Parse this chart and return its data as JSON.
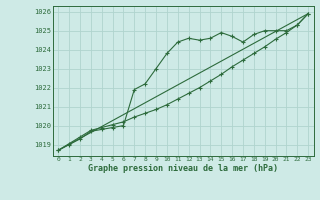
{
  "title": "Graphe pression niveau de la mer (hPa)",
  "background_color": "#ceeae6",
  "grid_color": "#b0d4ce",
  "line_color": "#2d6b3c",
  "x_ticks": [
    0,
    1,
    2,
    3,
    4,
    5,
    6,
    7,
    8,
    9,
    10,
    11,
    12,
    13,
    14,
    15,
    16,
    17,
    18,
    19,
    20,
    21,
    22,
    23
  ],
  "xlim": [
    -0.5,
    23.5
  ],
  "ylim": [
    1018.4,
    1026.3
  ],
  "y_ticks": [
    1019,
    1020,
    1021,
    1022,
    1023,
    1024,
    1025,
    1026
  ],
  "series1_x": [
    0,
    1,
    2,
    3,
    4,
    5,
    6,
    7,
    8,
    9,
    10,
    11,
    12,
    13,
    14,
    15,
    16,
    17,
    18,
    19,
    20,
    21,
    22,
    23
  ],
  "series1_y": [
    1018.7,
    1019.0,
    1019.3,
    1019.7,
    1019.8,
    1019.9,
    1020.0,
    1021.9,
    1022.2,
    1023.0,
    1023.8,
    1024.4,
    1024.6,
    1024.5,
    1024.6,
    1024.9,
    1024.7,
    1024.4,
    1024.8,
    1025.0,
    1025.0,
    1025.0,
    1025.3,
    1025.9
  ],
  "series2_x": [
    0,
    1,
    2,
    3,
    4,
    5,
    6,
    7,
    8,
    9,
    10,
    11,
    12,
    13,
    14,
    15,
    16,
    17,
    18,
    19,
    20,
    21,
    22,
    23
  ],
  "series2_y": [
    1018.7,
    1019.05,
    1019.4,
    1019.75,
    1019.9,
    1020.05,
    1020.2,
    1020.45,
    1020.65,
    1020.85,
    1021.1,
    1021.4,
    1021.7,
    1022.0,
    1022.35,
    1022.7,
    1023.1,
    1023.45,
    1023.8,
    1024.15,
    1024.55,
    1024.9,
    1025.3,
    1025.9
  ],
  "series3_x": [
    0,
    23
  ],
  "series3_y": [
    1018.7,
    1025.9
  ]
}
